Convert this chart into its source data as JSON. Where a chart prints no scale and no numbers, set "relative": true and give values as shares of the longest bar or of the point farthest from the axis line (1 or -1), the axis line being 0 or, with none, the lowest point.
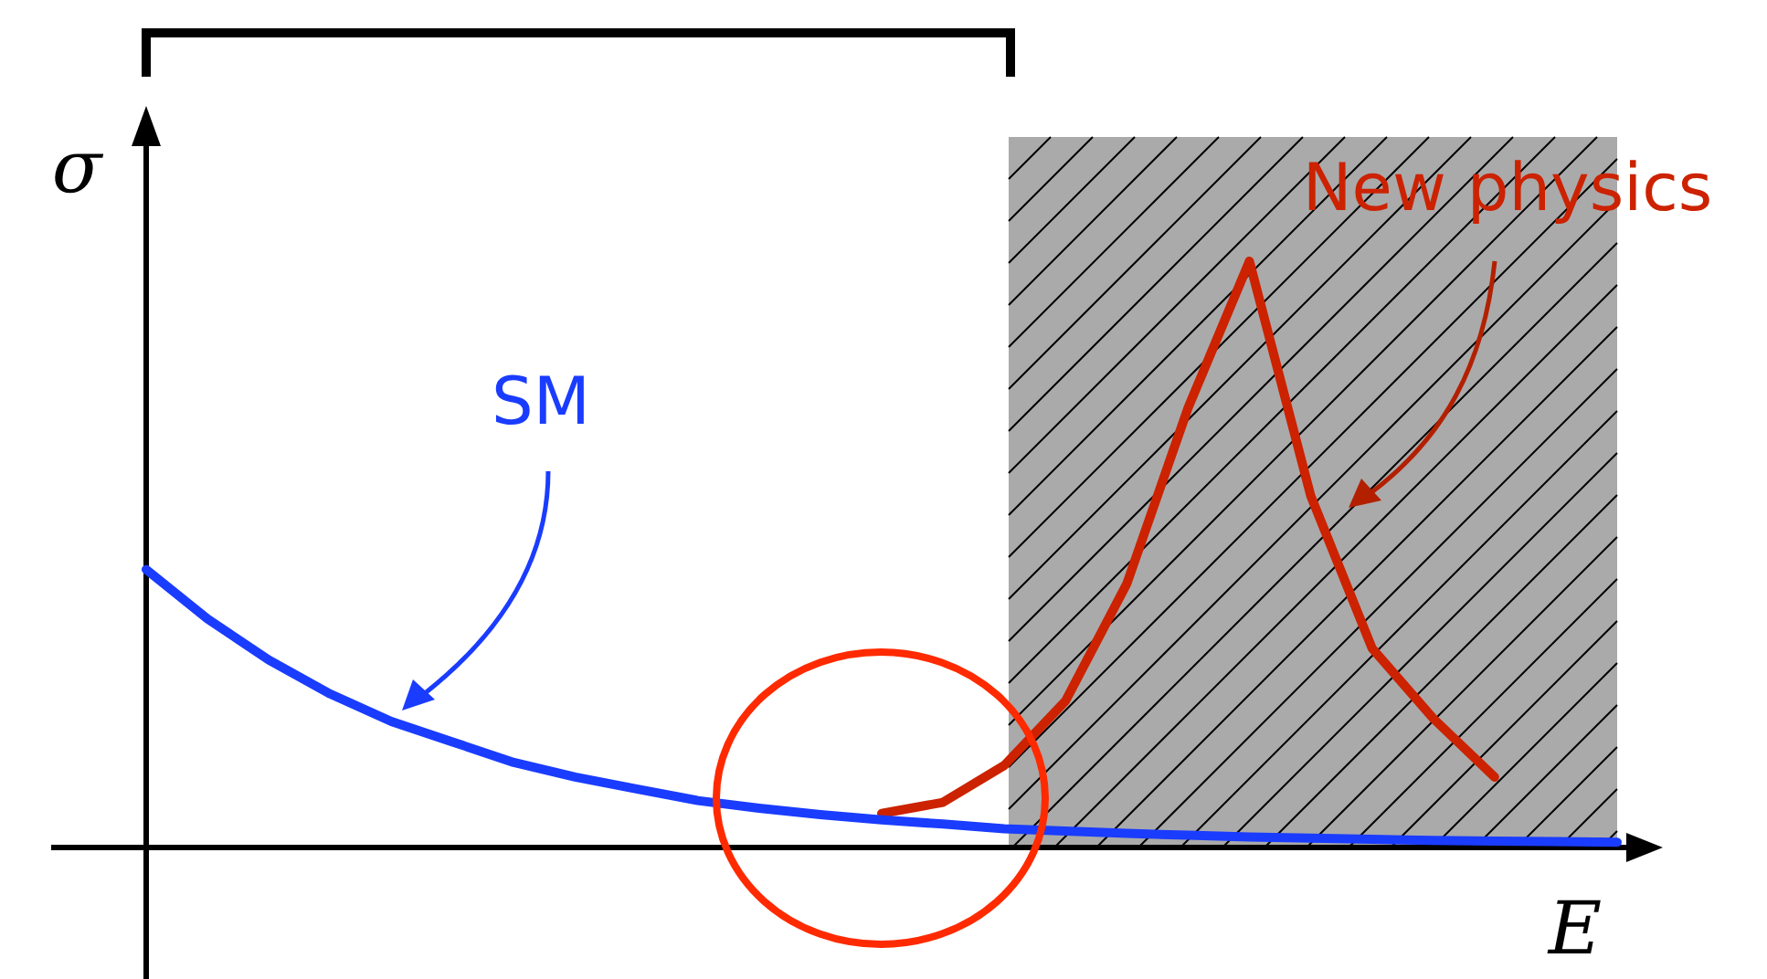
{
  "chart_data": {
    "type": "line",
    "relative": true,
    "xlabel": "E",
    "ylabel": "σ",
    "marker": "none",
    "categories": [
      null,
      null,
      null,
      null,
      null,
      null,
      null,
      null,
      null,
      null,
      null,
      null,
      null,
      null,
      null,
      null,
      null,
      null,
      null,
      null,
      null,
      null,
      null,
      null,
      null
    ],
    "series": [
      {
        "name": "New physics",
        "color": "#cc2200",
        "values": [
          null,
          null,
          null,
          null,
          null,
          null,
          null,
          null,
          null,
          null,
          null,
          null,
          0.058,
          0.077,
          0.14,
          0.25,
          0.45,
          0.75,
          1,
          0.6,
          0.34,
          0.22,
          0.12,
          null,
          null
        ]
      },
      {
        "name": "SM",
        "color": "#1a3cff",
        "values": [
          0.474,
          0.39,
          0.32,
          0.262,
          0.215,
          0.18,
          0.145,
          0.12,
          0.1,
          0.08,
          0.067,
          0.056,
          0.047,
          0.04,
          0.032,
          0.028,
          0.024,
          0.021,
          0.018,
          0.016,
          0.014,
          0.012,
          0.011,
          0.01,
          0.009
        ]
      }
    ]
  }
}
